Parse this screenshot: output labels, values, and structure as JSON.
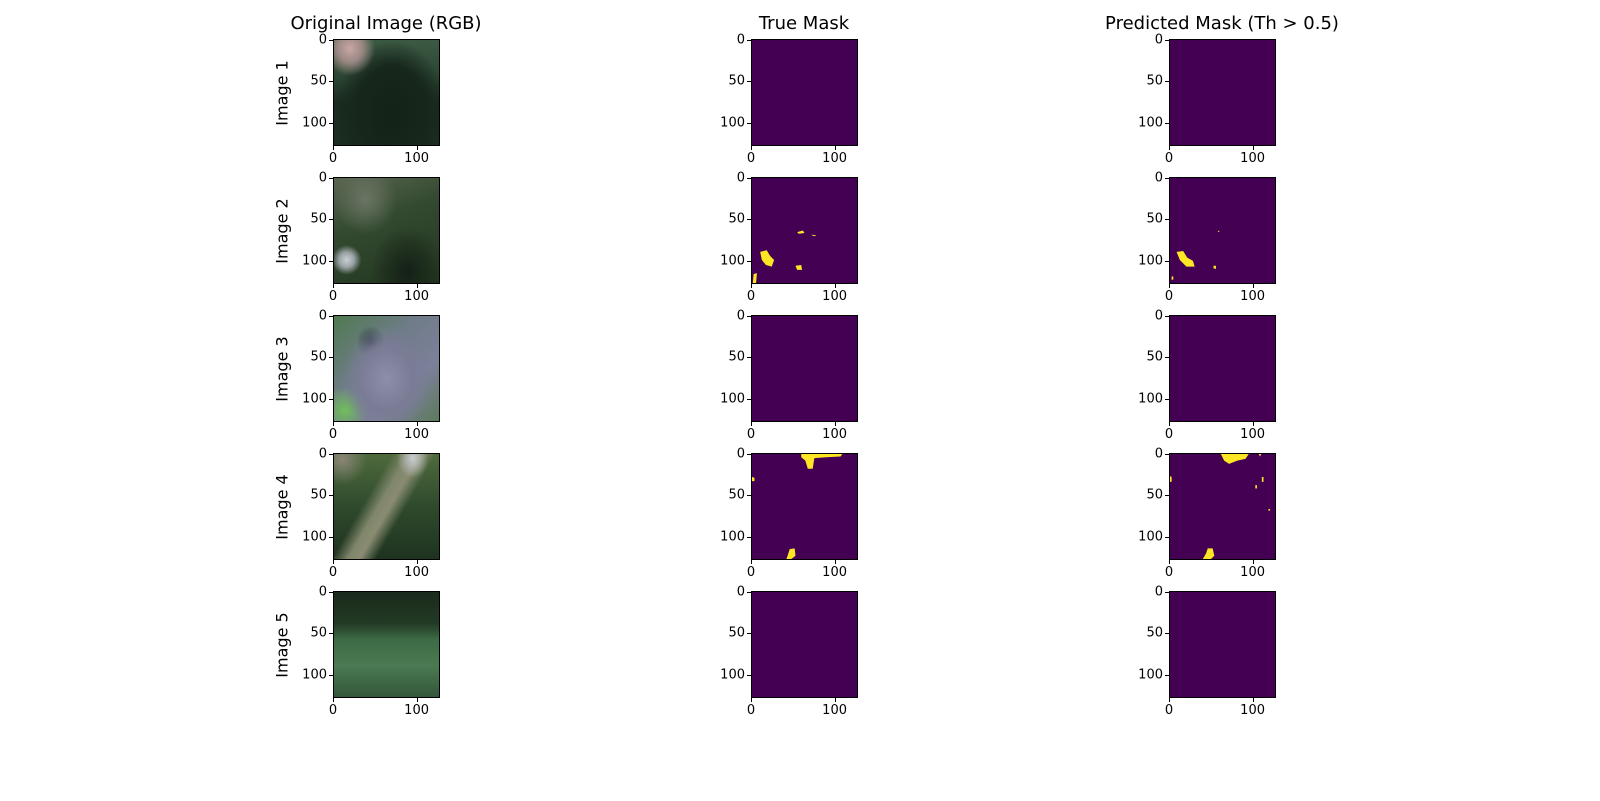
{
  "chart_data": {
    "type": "image-grid",
    "column_titles": [
      "Original Image (RGB)",
      "True Mask",
      "Predicted Mask (Th > 0.5)"
    ],
    "row_labels": [
      "Image 1",
      "Image 2",
      "Image 3",
      "Image 4",
      "Image 5"
    ],
    "image_size": [
      128,
      128
    ],
    "xlim": [
      0,
      128
    ],
    "ylim": [
      128,
      0
    ],
    "x_ticks": [
      "0",
      "100"
    ],
    "y_ticks": [
      "0",
      "50",
      "100"
    ],
    "colormap": {
      "background": "#440154",
      "foreground": "#fde725"
    },
    "threshold": 0.5,
    "masks": [
      {
        "true": [],
        "pred": []
      },
      {
        "true": [
          [
            [
              10,
              90
            ],
            [
              18,
              88
            ],
            [
              22,
              95
            ],
            [
              27,
              100
            ],
            [
              24,
              108
            ],
            [
              17,
              106
            ],
            [
              12,
              100
            ]
          ],
          [
            [
              55,
              66
            ],
            [
              62,
              64
            ],
            [
              64,
              67
            ],
            [
              57,
              68
            ]
          ],
          [
            [
              73,
              69
            ],
            [
              78,
              70
            ],
            [
              77,
              71
            ],
            [
              73,
              70
            ]
          ],
          [
            [
              53,
              107
            ],
            [
              60,
              106
            ],
            [
              61,
              112
            ],
            [
              55,
              112
            ]
          ],
          [
            [
              2,
              117
            ],
            [
              6,
              116
            ],
            [
              5,
              128
            ],
            [
              1,
              128
            ]
          ]
        ],
        "pred": [
          [
            [
              8,
              90
            ],
            [
              16,
              89
            ],
            [
              21,
              97
            ],
            [
              28,
              101
            ],
            [
              30,
              108
            ],
            [
              20,
              108
            ],
            [
              12,
              100
            ]
          ],
          [
            [
              58,
              65
            ],
            [
              60,
              64
            ],
            [
              60,
              66
            ]
          ],
          [
            [
              53,
              107
            ],
            [
              56,
              107
            ],
            [
              56,
              111
            ],
            [
              53,
              110
            ]
          ],
          [
            [
              2,
              120
            ],
            [
              4,
              120
            ],
            [
              4,
              124
            ],
            [
              2,
              124
            ]
          ]
        ]
      },
      {
        "true": [],
        "pred": []
      },
      {
        "true": [
          [
            [
              60,
              0
            ],
            [
              110,
              0
            ],
            [
              108,
              3
            ],
            [
              90,
              4
            ],
            [
              76,
              5
            ],
            [
              74,
              18
            ],
            [
              68,
              18
            ],
            [
              65,
              8
            ],
            [
              60,
              4
            ]
          ],
          [
            [
              0,
              28
            ],
            [
              3,
              29
            ],
            [
              3,
              33
            ],
            [
              0,
              33
            ]
          ],
          [
            [
              46,
              116
            ],
            [
              52,
              115
            ],
            [
              53,
              124
            ],
            [
              48,
              128
            ],
            [
              42,
              128
            ],
            [
              44,
              122
            ]
          ]
        ],
        "pred": [
          [
            [
              62,
              0
            ],
            [
              96,
              0
            ],
            [
              92,
              6
            ],
            [
              82,
              8
            ],
            [
              72,
              12
            ],
            [
              66,
              8
            ]
          ],
          [
            [
              108,
              0
            ],
            [
              111,
              0
            ],
            [
              110,
              3
            ]
          ],
          [
            [
              0,
              27
            ],
            [
              2,
              28
            ],
            [
              2,
              34
            ],
            [
              0,
              34
            ]
          ],
          [
            [
              112,
              28
            ],
            [
              114,
              28
            ],
            [
              114,
              34
            ],
            [
              112,
              34
            ]
          ],
          [
            [
              104,
              38
            ],
            [
              106,
              38
            ],
            [
              106,
              42
            ],
            [
              104,
              42
            ]
          ],
          [
            [
              120,
              67
            ],
            [
              122,
              67
            ],
            [
              122,
              69
            ],
            [
              120,
              69
            ]
          ],
          [
            [
              46,
              115
            ],
            [
              52,
              115
            ],
            [
              54,
              124
            ],
            [
              50,
              128
            ],
            [
              40,
              128
            ],
            [
              44,
              121
            ]
          ]
        ]
      },
      {
        "true": [],
        "pred": []
      }
    ]
  }
}
